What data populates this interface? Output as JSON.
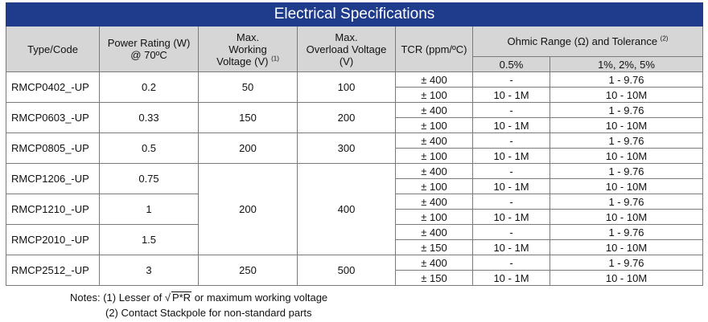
{
  "title": "Electrical Specifications",
  "headers": {
    "type_code": "Type/Code",
    "power_rating": "Power Rating (W)",
    "power_rating_cond": "@ 70ºC",
    "max_working_1": "Max.",
    "max_working_2": "Working",
    "max_working_3": "Voltage (V)",
    "max_working_note": "(1)",
    "max_overload_1": "Max.",
    "max_overload_2": "Overload Voltage",
    "max_overload_3": "(V)",
    "tcr": "TCR (ppm/ºC)",
    "ohmic": "Ohmic Range (Ω) and Tolerance",
    "ohmic_note": "(2)",
    "tol_1": "0.5%",
    "tol_2": "1%, 2%, 5%"
  },
  "rows": [
    {
      "code": "RMCP0402_-UP",
      "power": "0.2",
      "working": "50",
      "overload": "100",
      "tcr": [
        "± 400",
        "± 100"
      ],
      "tol05": [
        "-",
        "10 - 1M"
      ],
      "tol1": [
        "1 - 9.76",
        "10 - 10M"
      ]
    },
    {
      "code": "RMCP0603_-UP",
      "power": "0.33",
      "working": "150",
      "overload": "200",
      "tcr": [
        "± 400",
        "± 100"
      ],
      "tol05": [
        "-",
        "10 - 1M"
      ],
      "tol1": [
        "1 - 9.76",
        "10 - 10M"
      ]
    },
    {
      "code": "RMCP0805_-UP",
      "power": "0.5",
      "working": "200",
      "overload": "300",
      "tcr": [
        "± 400",
        "± 100"
      ],
      "tol05": [
        "-",
        "10 - 1M"
      ],
      "tol1": [
        "1 - 9.76",
        "10 - 10M"
      ]
    },
    {
      "code": "RMCP1206_-UP",
      "power": "0.75",
      "working": "200",
      "overload": "400",
      "tcr": [
        "± 400",
        "± 100"
      ],
      "tol05": [
        "-",
        "10 - 1M"
      ],
      "tol1": [
        "1 - 9.76",
        "10 - 10M"
      ]
    },
    {
      "code": "RMCP1210_-UP",
      "power": "1",
      "tcr": [
        "± 400",
        "± 100"
      ],
      "tol05": [
        "-",
        "10 - 1M"
      ],
      "tol1": [
        "1 - 9.76",
        "10 - 10M"
      ]
    },
    {
      "code": "RMCP2010_-UP",
      "power": "1.5",
      "tcr": [
        "± 400",
        "± 150"
      ],
      "tol05": [
        "-",
        "10 - 1M"
      ],
      "tol1": [
        "1 - 9.76",
        "10 - 10M"
      ]
    },
    {
      "code": "RMCP2512_-UP",
      "power": "3",
      "working": "250",
      "overload": "500",
      "tcr": [
        "± 400",
        "± 150"
      ],
      "tol05": [
        "-",
        "10 - 1M"
      ],
      "tol1": [
        "1 - 9.76",
        "10 - 10M"
      ]
    }
  ],
  "notes": {
    "label": "Notes:",
    "n1_pre": "(1) Lesser of",
    "n1_sqrt_sign": "√",
    "n1_sqrt": "P*R",
    "n1_post": "or maximum working voltage",
    "n2": "(2) Contact Stackpole for non-standard parts"
  },
  "colors": {
    "title_bg": "#1f3b8c",
    "header_bg": "#d6d6d6"
  }
}
